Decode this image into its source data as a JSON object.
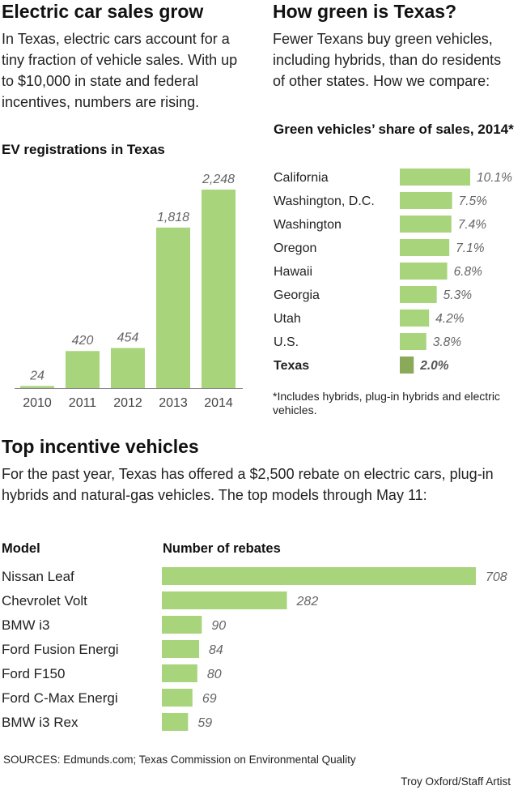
{
  "colors": {
    "bar": "#a8d47c",
    "highlight_bar": "#8aaa5a",
    "baseline": "#888888",
    "label": "#666666"
  },
  "ev_section": {
    "title": "Electric car sales grow",
    "deck": "In Texas, electric cars account for a tiny fraction of vehicle sales. With up to $10,000 in state and federal incentives, numbers are rising."
  },
  "green_section": {
    "title": "How green is Texas?",
    "deck": "Fewer Texans buy green vehicles, including hybrids, than do residents of other states. How we compare:",
    "footnote": "*Includes hybrids, plug-in hybrids and electric vehicles."
  },
  "incentive_section": {
    "title": "Top incentive vehicles",
    "deck": "For the past year, Texas has offered a $2,500 rebate on electric cars, plug-in hybrids and natural-gas vehicles. The top models through May 11:",
    "model_header": "Model",
    "rebates_header": "Number of rebates"
  },
  "footer": {
    "sources": "SOURCES: Edmunds.com; Texas Commission on Environmental Quality",
    "credit": "Troy Oxford/Staff Artist"
  },
  "chart_data": [
    {
      "type": "bar",
      "title": "EV registrations in Texas",
      "categories": [
        "2010",
        "2011",
        "2012",
        "2013",
        "2014"
      ],
      "values": [
        24,
        420,
        454,
        1818,
        2248
      ],
      "value_labels": [
        "24",
        "420",
        "454",
        "1,818",
        "2,248"
      ],
      "ylim": [
        0,
        2248
      ],
      "grid": false
    },
    {
      "type": "bar",
      "orientation": "horizontal",
      "title": "Green vehicles’ share of sales, 2014*",
      "categories": [
        "California",
        "Washington, D.C.",
        "Washington",
        "Oregon",
        "Hawaii",
        "Georgia",
        "Utah",
        "U.S.",
        "Texas"
      ],
      "values": [
        10.1,
        7.5,
        7.4,
        7.1,
        6.8,
        5.3,
        4.2,
        3.8,
        2.0
      ],
      "value_labels": [
        "10.1%",
        "7.5%",
        "7.4%",
        "7.1%",
        "6.8%",
        "5.3%",
        "4.2%",
        "3.8%",
        "2.0%"
      ],
      "highlight": "Texas",
      "xlim": [
        0,
        10.1
      ],
      "grid": false
    },
    {
      "type": "bar",
      "orientation": "horizontal",
      "categories": [
        "Nissan Leaf",
        "Chevrolet Volt",
        "BMW i3",
        "Ford Fusion Energi",
        "Ford F150",
        "Ford C-Max Energi",
        "BMW i3 Rex"
      ],
      "values": [
        708,
        282,
        90,
        84,
        80,
        69,
        59
      ],
      "value_labels": [
        "708",
        "282",
        "90",
        "84",
        "80",
        "69",
        "59"
      ],
      "xlim": [
        0,
        708
      ],
      "grid": false
    }
  ]
}
